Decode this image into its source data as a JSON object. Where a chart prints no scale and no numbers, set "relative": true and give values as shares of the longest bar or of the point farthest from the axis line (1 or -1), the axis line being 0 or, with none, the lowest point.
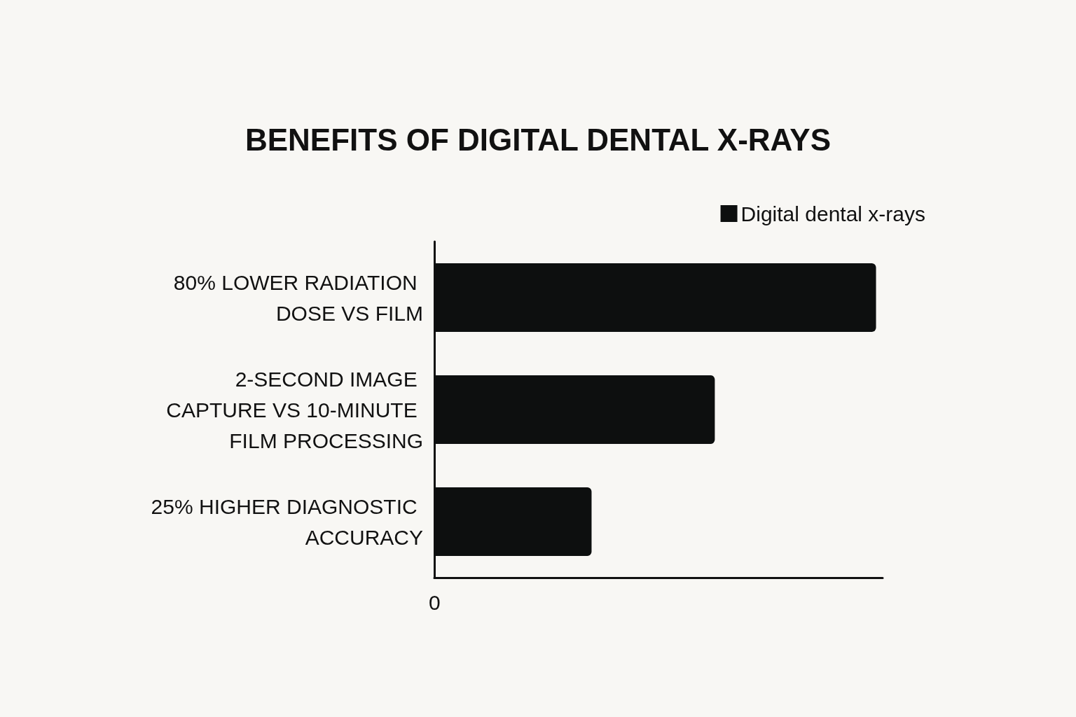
{
  "chart_data": {
    "type": "bar",
    "orientation": "horizontal",
    "relative": true,
    "title": "BENEFITS OF DIGITAL DENTAL X-RAYS",
    "categories": [
      "80% LOWER RADIATION DOSE VS FILM",
      "2-SECOND IMAGE CAPTURE VS 10-MINUTE FILM PROCESSING",
      "25% HIGHER DIAGNOSTIC ACCURACY"
    ],
    "series": [
      {
        "name": "Digital dental x-rays",
        "color": "#0d0f0f",
        "values": [
          1,
          0.635,
          0.356
        ]
      }
    ],
    "legend": "top right",
    "annotations": [
      "0"
    ]
  }
}
